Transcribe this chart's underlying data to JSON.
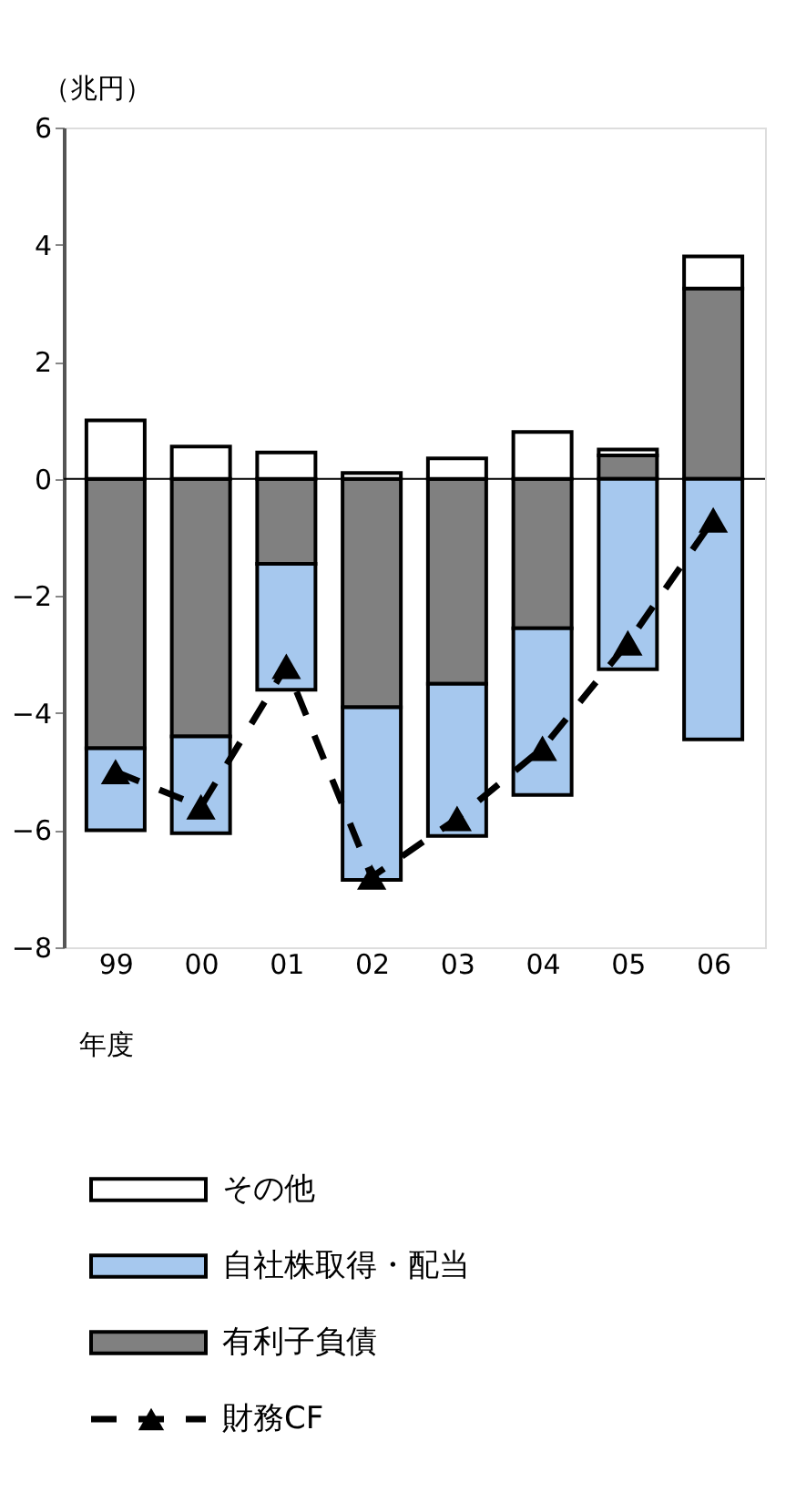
{
  "chart_data": {
    "type": "bar",
    "stacked": true,
    "ylabel": "（兆円）",
    "xlabel": "年度",
    "categories": [
      "99",
      "00",
      "01",
      "02",
      "03",
      "04",
      "05",
      "06"
    ],
    "series": [
      {
        "name": "有利子負債",
        "color": "#808080",
        "values": [
          -4.6,
          -4.4,
          -1.45,
          -3.9,
          -3.5,
          -2.55,
          0.4,
          3.25
        ]
      },
      {
        "name": "自社株取得・配当",
        "color": "#a6c8ee",
        "values": [
          -1.4,
          -1.65,
          -2.15,
          -2.95,
          -2.6,
          -2.85,
          -3.25,
          -4.45
        ]
      },
      {
        "name": "その他",
        "color": "#ffffff",
        "values": [
          1.0,
          0.55,
          0.45,
          0.1,
          0.35,
          0.8,
          0.1,
          0.55
        ]
      },
      {
        "name": "財務CF",
        "type": "line",
        "color": "#000000",
        "marker": "triangle",
        "line_style": "dashed",
        "values": [
          -5.0,
          -5.6,
          -3.2,
          -6.8,
          -5.8,
          -4.6,
          -2.8,
          -0.7
        ]
      }
    ],
    "ref_lines": [
      {
        "axis": "y",
        "value": 0
      }
    ],
    "ylim": [
      -8,
      6
    ],
    "yticks": [
      -8,
      -6,
      -4,
      -2,
      0,
      2,
      4,
      6
    ],
    "grid": false,
    "legend": "bottom"
  }
}
